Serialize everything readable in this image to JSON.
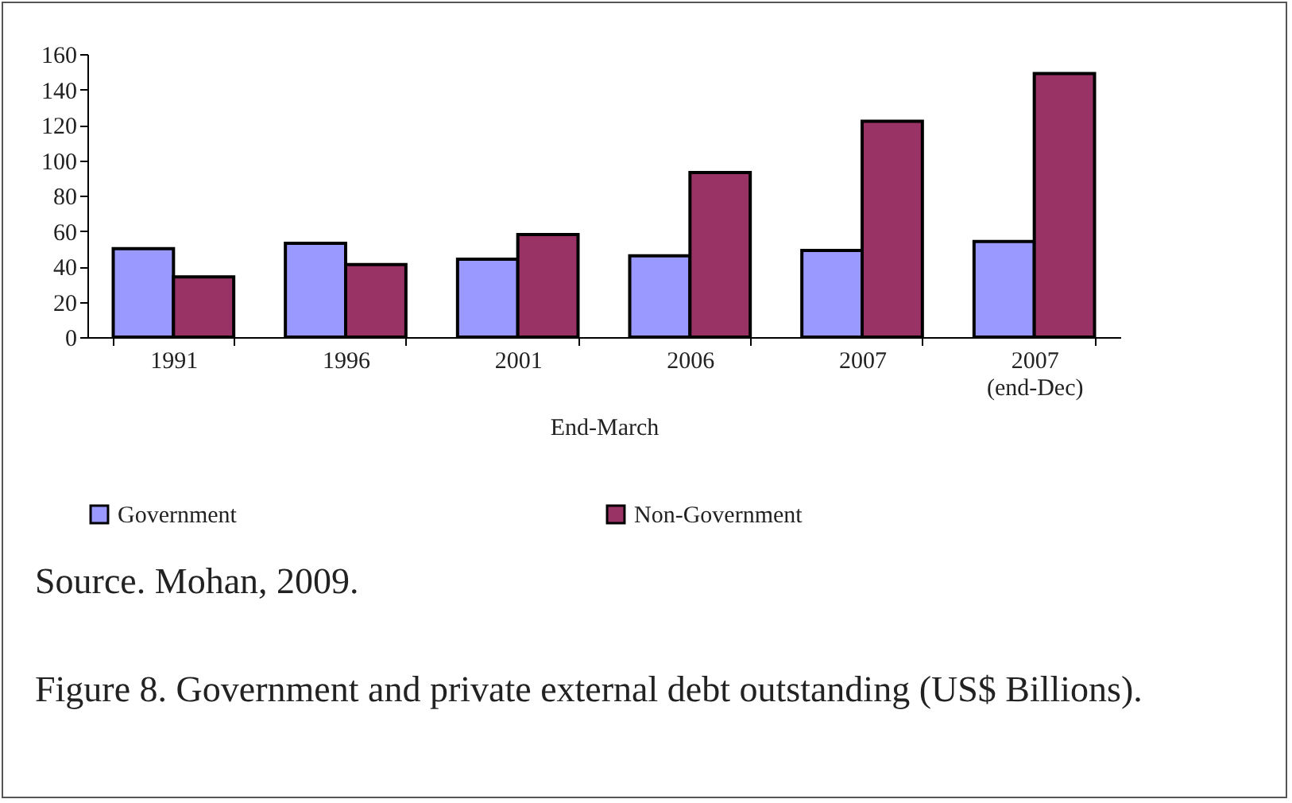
{
  "chart_data": {
    "type": "bar",
    "categories": [
      "1991",
      "1996",
      "2001",
      "2006",
      "2007",
      "2007\n(end-Dec)"
    ],
    "xlabel": "End-March",
    "series": [
      {
        "name": "Government",
        "color": "#9999ff",
        "values": [
          50,
          53,
          44,
          46,
          49,
          54
        ]
      },
      {
        "name": "Non-Government",
        "color": "#993366",
        "values": [
          34,
          41,
          58,
          93,
          122,
          149
        ]
      }
    ],
    "ylim": [
      0,
      160
    ],
    "yticks": [
      0,
      20,
      40,
      60,
      80,
      100,
      120,
      140,
      160
    ],
    "grid": false,
    "legend": "bottom",
    "annotations": [
      "Source. Mohan, 2009.",
      "Figure 8. Government and private external debt outstanding (US$ Billions)."
    ]
  }
}
